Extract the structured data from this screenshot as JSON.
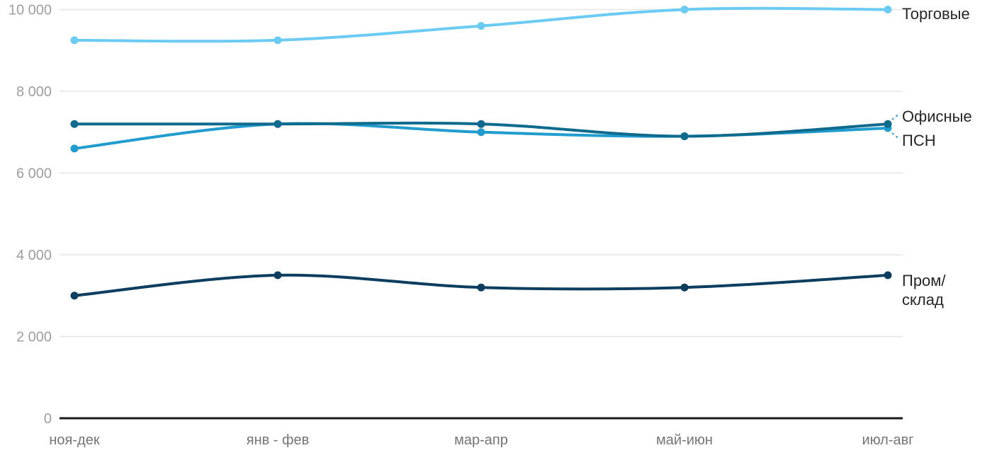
{
  "chart_data": {
    "type": "line",
    "title": "",
    "xlabel": "",
    "ylabel": "",
    "categories": [
      "ноя-дек",
      "янв - фев",
      "мар-апр",
      "май-июн",
      "июл-авг"
    ],
    "series": [
      {
        "name": "Торговые",
        "color": "#6CCBF2",
        "values": [
          9250,
          9250,
          9600,
          10000,
          10000
        ],
        "label_lines": [
          "Торговые"
        ]
      },
      {
        "name": "Офисные",
        "color": "#0F6B8D",
        "values": [
          7200,
          7200,
          7200,
          6900,
          7200
        ],
        "label_lines": [
          "Офисные"
        ]
      },
      {
        "name": "ПСН",
        "color": "#209CCE",
        "values": [
          6600,
          7200,
          7000,
          6900,
          7100
        ],
        "label_lines": [
          "ПСН"
        ]
      },
      {
        "name": "Пром/склад",
        "color": "#0D3E60",
        "values": [
          3000,
          3500,
          3200,
          3200,
          3500
        ],
        "label_lines": [
          "Пром/",
          "склад"
        ]
      }
    ],
    "ylim": [
      0,
      10000
    ],
    "yticks": [
      0,
      2000,
      4000,
      6000,
      8000,
      10000
    ],
    "ytick_labels": [
      "0",
      "2 000",
      "4 000",
      "6 000",
      "8 000",
      "10 000"
    ],
    "grid": true,
    "smooth": true,
    "legend_position": "labels-at-line-end-right"
  },
  "colors": {
    "background": "#ffffff",
    "gridline": "#e6e6e6",
    "axis_line": "#1a1a1a",
    "y_tick_text": "#9e9e9e",
    "x_tick_text": "#757575",
    "series_label_text": "#262626",
    "label_connector": "#2e9bd6"
  }
}
